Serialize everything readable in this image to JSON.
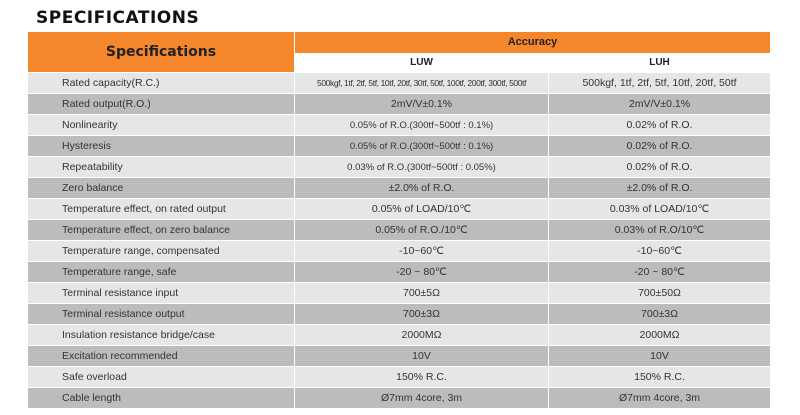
{
  "page": {
    "title": "SPECIFICATIONS"
  },
  "table": {
    "header": {
      "first_col": "Specifications",
      "group": "Accuracy",
      "col_luw": "LUW",
      "col_luh": "LUH"
    },
    "rows": [
      {
        "label": "Rated capacity(R.C.)",
        "luw": "500kgf, 1tf, 2tf, 5tf, 10tf, 20tf, 30tf, 50tf, 100tf, 200tf, 300tf, 500tf",
        "luh": "500kgf, 1tf, 2tf, 5tf, 10tf, 20tf, 50tf"
      },
      {
        "label": "Rated output(R.O.)",
        "luw": "2mV/V±0.1%",
        "luh": "2mV/V±0.1%"
      },
      {
        "label": "Nonlinearity",
        "luw": "0.05% of R.O.(300tf~500tf : 0.1%)",
        "luh": "0.02% of R.O."
      },
      {
        "label": "Hysteresis",
        "luw": "0.05% of R.O.(300tf~500tf : 0.1%)",
        "luh": "0.02% of R.O."
      },
      {
        "label": "Repeatability",
        "luw": "0.03% of R.O.(300tf~500tf : 0.05%)",
        "luh": "0.02% of R.O."
      },
      {
        "label": "Zero balance",
        "luw": "±2.0% of R.O.",
        "luh": "±2.0% of R.O."
      },
      {
        "label": "Temperature effect, on rated output",
        "luw": "0.05% of LOAD/10℃",
        "luh": "0.03% of LOAD/10℃"
      },
      {
        "label": "Temperature effect, on zero balance",
        "luw": "0.05% of R.O./10℃",
        "luh": "0.03% of R.O/10℃"
      },
      {
        "label": "Temperature range, compensated",
        "luw": "-10~60℃",
        "luh": "-10~60℃"
      },
      {
        "label": "Temperature range, safe",
        "luw": "-20 ~ 80℃",
        "luh": "-20 ~ 80℃"
      },
      {
        "label": "Terminal resistance input",
        "luw": "700±5Ω",
        "luh": "700±50Ω"
      },
      {
        "label": "Terminal resistance output",
        "luw": "700±3Ω",
        "luh": "700±3Ω"
      },
      {
        "label": "Insulation resistance bridge/case",
        "luw": "2000MΩ",
        "luh": "2000MΩ"
      },
      {
        "label": "Excitation recommended",
        "luw": "10V",
        "luh": "10V"
      },
      {
        "label": "Safe overload",
        "luw": "150% R.C.",
        "luh": "150% R.C."
      },
      {
        "label": "Cable length",
        "luw": "Ø7mm 4core, 3m",
        "luh": "Ø7mm 4core, 3m"
      }
    ]
  }
}
